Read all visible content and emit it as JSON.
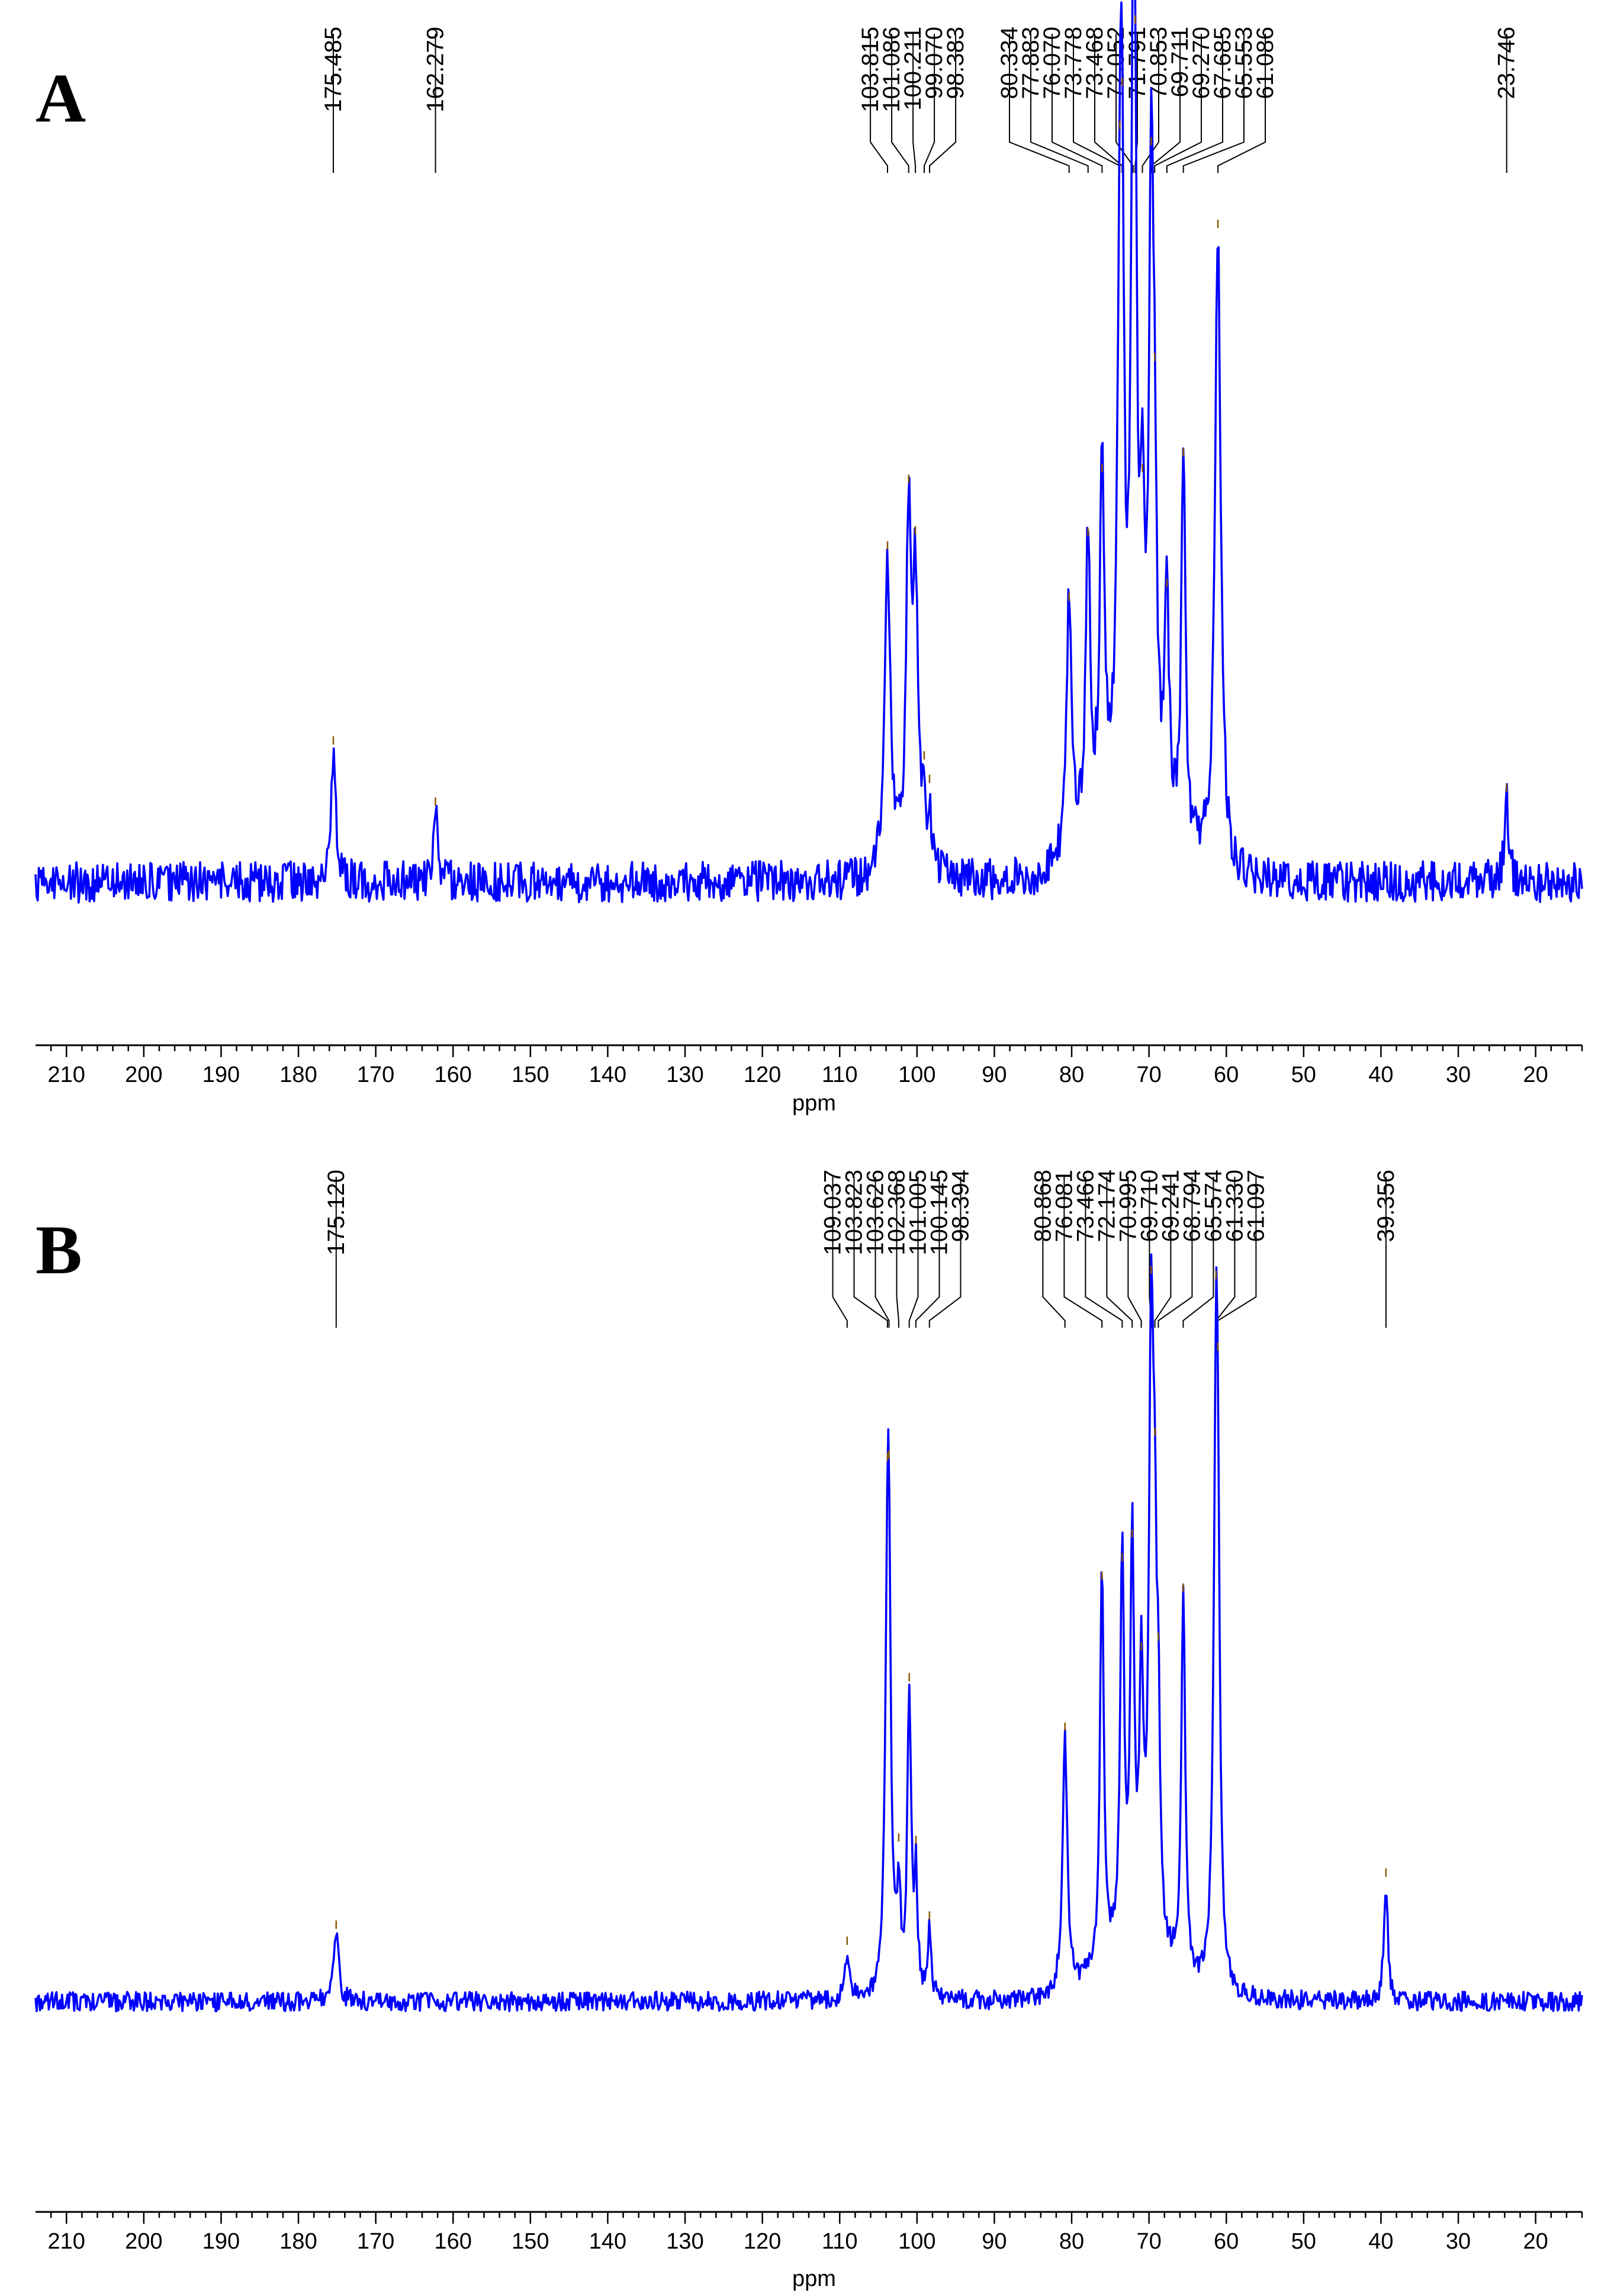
{
  "chart_data": [
    {
      "type": "line",
      "panel_label": "A",
      "xlabel": "ppm",
      "xlim": [
        214,
        14
      ],
      "reversed_x": true,
      "x_ticks": [
        210,
        200,
        190,
        180,
        170,
        160,
        150,
        140,
        130,
        120,
        110,
        100,
        90,
        80,
        70,
        60,
        50,
        40,
        30,
        20
      ],
      "x_tick_labels": [
        "210",
        "200",
        "190",
        "180",
        "170",
        "160",
        "150",
        "140",
        "130",
        "120",
        "110",
        "100",
        "90",
        "80",
        "70",
        "60",
        "50",
        "40",
        "30",
        "20"
      ],
      "line_color": "#0000ff",
      "ylim": [
        -0.12,
        1.0
      ],
      "baseline_noise": 0.03,
      "peak_labels": [
        "175.485",
        "162.279",
        "103.815",
        "101.086",
        "100.211",
        "99.070",
        "98.383",
        "80.334",
        "77.883",
        "76.070",
        "73.778",
        "73.468",
        "72.052",
        "71.791",
        "70.853",
        "69.711",
        "69.270",
        "67.685",
        "65.553",
        "61.086",
        "23.746"
      ],
      "peaks": [
        {
          "ppm": 175.485,
          "height": 0.19,
          "width": 0.35
        },
        {
          "ppm": 162.279,
          "height": 0.1,
          "width": 0.35
        },
        {
          "ppm": 103.815,
          "height": 0.46,
          "width": 0.45
        },
        {
          "ppm": 101.086,
          "height": 0.49,
          "width": 0.4
        },
        {
          "ppm": 100.211,
          "height": 0.4,
          "width": 0.4
        },
        {
          "ppm": 99.07,
          "height": 0.09,
          "width": 0.25
        },
        {
          "ppm": 98.383,
          "height": 0.09,
          "width": 0.25
        },
        {
          "ppm": 80.334,
          "height": 0.38,
          "width": 0.4
        },
        {
          "ppm": 77.883,
          "height": 0.45,
          "width": 0.35
        },
        {
          "ppm": 76.07,
          "height": 0.53,
          "width": 0.35
        },
        {
          "ppm": 73.778,
          "height": 0.69,
          "width": 0.35
        },
        {
          "ppm": 73.468,
          "height": 0.67,
          "width": 0.3
        },
        {
          "ppm": 72.052,
          "height": 0.91,
          "width": 0.35
        },
        {
          "ppm": 71.791,
          "height": 0.55,
          "width": 0.3
        },
        {
          "ppm": 70.853,
          "height": 0.35,
          "width": 0.3
        },
        {
          "ppm": 69.711,
          "height": 0.88,
          "width": 0.35
        },
        {
          "ppm": 69.27,
          "height": 0.35,
          "width": 0.3
        },
        {
          "ppm": 67.685,
          "height": 0.35,
          "width": 0.3
        },
        {
          "ppm": 65.553,
          "height": 0.58,
          "width": 0.3
        },
        {
          "ppm": 61.086,
          "height": 0.94,
          "width": 0.45
        },
        {
          "ppm": 23.746,
          "height": 0.12,
          "width": 0.35
        }
      ]
    },
    {
      "type": "line",
      "panel_label": "B",
      "xlabel": "ppm",
      "xlim": [
        214,
        14
      ],
      "reversed_x": true,
      "x_ticks": [
        210,
        200,
        190,
        180,
        170,
        160,
        150,
        140,
        130,
        120,
        110,
        100,
        90,
        80,
        70,
        60,
        50,
        40,
        30,
        20
      ],
      "x_tick_labels": [
        "210",
        "200",
        "190",
        "180",
        "170",
        "160",
        "150",
        "140",
        "130",
        "120",
        "110",
        "100",
        "90",
        "80",
        "70",
        "60",
        "50",
        "40",
        "30",
        "20"
      ],
      "line_color": "#0000ff",
      "ylim": [
        -0.08,
        1.0
      ],
      "baseline_noise": 0.015,
      "peak_labels": [
        "175.120",
        "109.037",
        "103.823",
        "103.626",
        "102.368",
        "101.005",
        "100.145",
        "98.394",
        "80.868",
        "76.081",
        "73.466",
        "72.174",
        "70.995",
        "69.710",
        "69.241",
        "68.794",
        "65.574",
        "61.330",
        "61.097",
        "39.356"
      ],
      "peaks": [
        {
          "ppm": 175.12,
          "height": 0.1,
          "width": 0.4
        },
        {
          "ppm": 109.037,
          "height": 0.07,
          "width": 0.3
        },
        {
          "ppm": 103.823,
          "height": 0.52,
          "width": 0.35
        },
        {
          "ppm": 103.626,
          "height": 0.42,
          "width": 0.3
        },
        {
          "ppm": 102.368,
          "height": 0.16,
          "width": 0.25
        },
        {
          "ppm": 101.005,
          "height": 0.45,
          "width": 0.3
        },
        {
          "ppm": 100.145,
          "height": 0.17,
          "width": 0.25
        },
        {
          "ppm": 98.394,
          "height": 0.1,
          "width": 0.25
        },
        {
          "ppm": 80.868,
          "height": 0.4,
          "width": 0.35
        },
        {
          "ppm": 76.081,
          "height": 0.62,
          "width": 0.3
        },
        {
          "ppm": 73.466,
          "height": 0.61,
          "width": 0.3
        },
        {
          "ppm": 72.174,
          "height": 0.62,
          "width": 0.3
        },
        {
          "ppm": 70.995,
          "height": 0.4,
          "width": 0.3
        },
        {
          "ppm": 69.71,
          "height": 0.96,
          "width": 0.35
        },
        {
          "ppm": 69.241,
          "height": 0.42,
          "width": 0.25
        },
        {
          "ppm": 68.794,
          "height": 0.3,
          "width": 0.25
        },
        {
          "ppm": 65.574,
          "height": 0.6,
          "width": 0.3
        },
        {
          "ppm": 61.33,
          "height": 0.85,
          "width": 0.35
        },
        {
          "ppm": 61.097,
          "height": 0.4,
          "width": 0.3
        },
        {
          "ppm": 39.356,
          "height": 0.18,
          "width": 0.3
        }
      ]
    }
  ]
}
